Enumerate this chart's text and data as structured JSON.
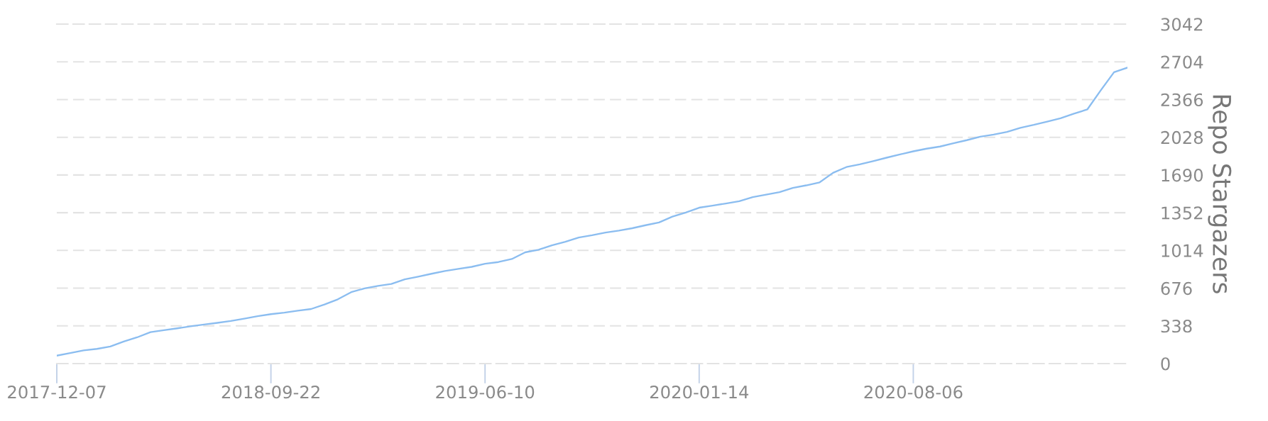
{
  "chart_data": {
    "type": "line",
    "ylabel": "Repo Stargazers",
    "categories": [
      "2017-12-07",
      null,
      null,
      null,
      null,
      null,
      null,
      null,
      null,
      null,
      null,
      null,
      null,
      null,
      null,
      null,
      "2018-09-22",
      null,
      null,
      null,
      null,
      null,
      null,
      null,
      null,
      null,
      null,
      null,
      null,
      null,
      null,
      null,
      "2019-06-10",
      null,
      null,
      null,
      null,
      null,
      null,
      null,
      null,
      null,
      null,
      null,
      null,
      null,
      null,
      null,
      "2020-01-14",
      null,
      null,
      null,
      null,
      null,
      null,
      null,
      null,
      null,
      null,
      null,
      null,
      null,
      null,
      null,
      "2020-08-06",
      null,
      null,
      null,
      null,
      null,
      null,
      null,
      null,
      null,
      null,
      null,
      null,
      null,
      null,
      null,
      null
    ],
    "series": [
      {
        "color": "#8bbdf0",
        "values": [
          71,
          95,
          118,
          132,
          153,
          197,
          235,
          282,
          299,
          316,
          334,
          350,
          365,
          382,
          403,
          425,
          443,
          456,
          474,
          489,
          530,
          576,
          640,
          674,
          696,
          714,
          755,
          779,
          805,
          830,
          849,
          867,
          895,
          910,
          937,
          997,
          1020,
          1060,
          1091,
          1130,
          1150,
          1174,
          1192,
          1213,
          1240,
          1265,
          1317,
          1353,
          1397,
          1415,
          1435,
          1455,
          1492,
          1514,
          1536,
          1574,
          1597,
          1624,
          1709,
          1761,
          1785,
          1814,
          1845,
          1874,
          1902,
          1926,
          1945,
          1974,
          2002,
          2033,
          2052,
          2076,
          2113,
          2139,
          2168,
          2198,
          2240,
          2277,
          2447,
          2611,
          2652
        ]
      }
    ],
    "ylim": [
      0,
      3042
    ],
    "yticks": [
      0,
      338,
      676,
      1014,
      1352,
      1690,
      2028,
      2366,
      2704,
      3042
    ],
    "grid": "y"
  }
}
